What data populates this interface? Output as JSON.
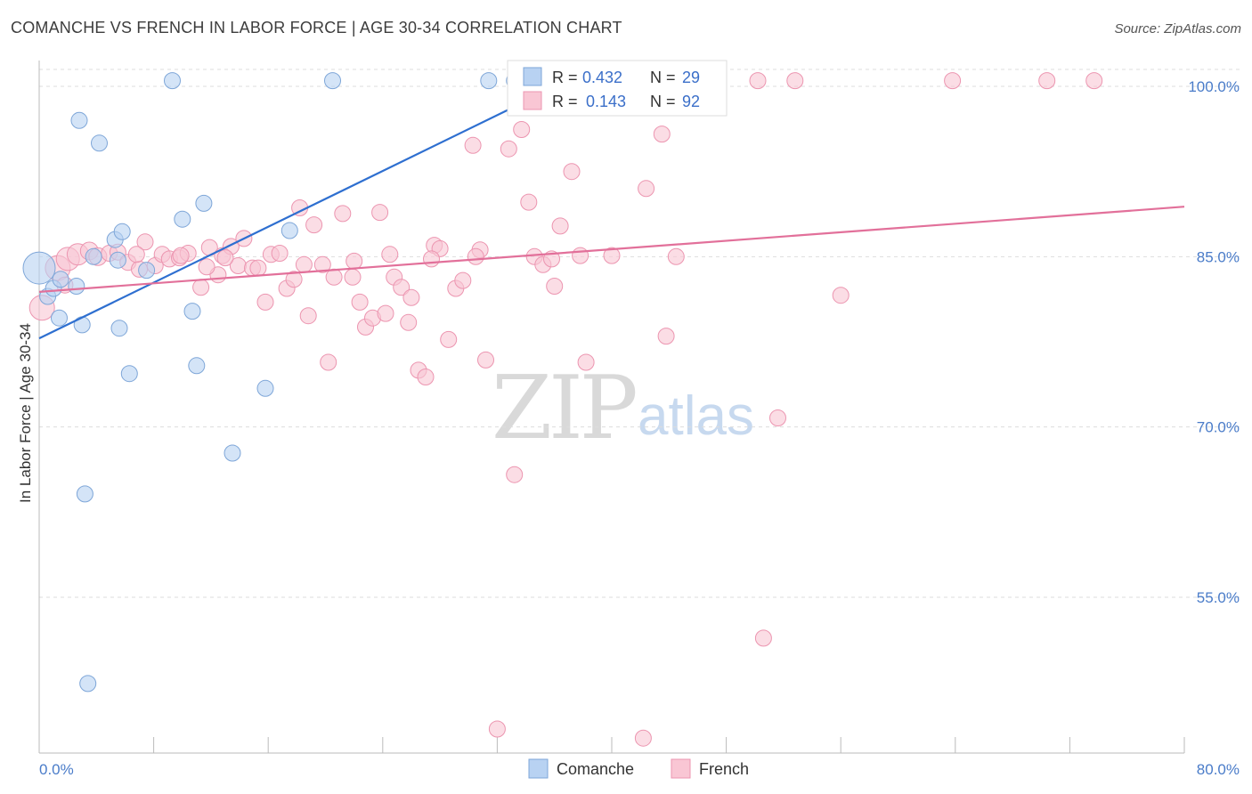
{
  "title": "COMANCHE VS FRENCH IN LABOR FORCE | AGE 30-34 CORRELATION CHART",
  "source": "Source: ZipAtlas.com",
  "watermark": {
    "zip": "ZIP",
    "atlas": "atlas"
  },
  "legend_stats": [
    {
      "r_label": "R =",
      "r_value": "0.432",
      "n_label": "N =",
      "n_value": "29"
    },
    {
      "r_label": "R =",
      "r_value": "0.143",
      "n_label": "N =",
      "n_value": "92"
    }
  ],
  "bottom_legend": [
    "Comanche",
    "French"
  ],
  "colors": {
    "comanche_fill": "#b8d2f2",
    "comanche_stroke": "#7ea6d8",
    "comanche_line": "#2e6fd0",
    "french_fill": "#f9c6d4",
    "french_stroke": "#ec95b0",
    "french_line": "#e2709a",
    "tick_label": "#4a7cc9",
    "grid": "#dddddd"
  },
  "chart_data": {
    "type": "scatter",
    "title": "COMANCHE VS FRENCH IN LABOR FORCE | AGE 30-34 CORRELATION CHART",
    "xlabel": "",
    "ylabel": "In Labor Force | Age 30-34",
    "xlim": [
      0,
      80
    ],
    "ylim": [
      41,
      102
    ],
    "x_tick_labels": [
      "0.0%",
      "80.0%"
    ],
    "y_ticks": [
      100,
      85,
      70,
      55
    ],
    "y_tick_labels": [
      "100.0%",
      "85.0%",
      "70.0%",
      "55.0%"
    ],
    "grid": "horizontal dashed",
    "legend_position": "top-center",
    "series": [
      {
        "name": "Comanche",
        "r": 0.432,
        "n": 29,
        "trend": {
          "x": [
            0,
            34.5
          ],
          "y": [
            77.8,
            99.0
          ]
        },
        "points": [
          [
            0.0,
            84.0,
            18
          ],
          [
            0.6,
            81.5,
            9
          ],
          [
            1.0,
            82.2,
            9
          ],
          [
            1.5,
            83.0,
            9
          ],
          [
            2.8,
            97.0,
            9
          ],
          [
            4.2,
            95.0,
            9
          ],
          [
            5.3,
            86.5,
            9
          ],
          [
            5.8,
            87.2,
            9
          ],
          [
            3.8,
            85.0,
            9
          ],
          [
            5.5,
            84.7,
            9
          ],
          [
            7.5,
            83.8,
            9
          ],
          [
            9.3,
            100.5,
            9
          ],
          [
            10.0,
            88.3,
            9
          ],
          [
            11.5,
            89.7,
            9
          ],
          [
            1.4,
            79.6,
            9
          ],
          [
            3.0,
            79.0,
            9
          ],
          [
            5.6,
            78.7,
            9
          ],
          [
            10.7,
            80.2,
            9
          ],
          [
            6.3,
            74.7,
            9
          ],
          [
            11.0,
            75.4,
            9
          ],
          [
            15.8,
            73.4,
            9
          ],
          [
            13.5,
            67.7,
            9
          ],
          [
            3.2,
            64.1,
            9
          ],
          [
            3.4,
            47.4,
            9
          ],
          [
            17.5,
            87.3,
            9
          ],
          [
            20.5,
            100.5,
            9
          ],
          [
            31.4,
            100.5,
            9
          ],
          [
            33.2,
            100.5,
            9
          ],
          [
            2.6,
            82.4,
            9
          ]
        ]
      },
      {
        "name": "French",
        "r": 0.143,
        "n": 92,
        "trend": {
          "x": [
            0,
            80
          ],
          "y": [
            81.9,
            89.4
          ]
        },
        "points": [
          [
            0.2,
            80.5,
            14
          ],
          [
            1.3,
            84.0,
            14
          ],
          [
            2.0,
            84.8,
            13
          ],
          [
            2.7,
            85.2,
            12
          ],
          [
            3.5,
            85.5,
            10
          ],
          [
            4.1,
            85.0,
            10
          ],
          [
            4.9,
            85.3,
            9
          ],
          [
            5.5,
            85.4,
            9
          ],
          [
            6.2,
            84.5,
            9
          ],
          [
            7.0,
            83.9,
            9
          ],
          [
            7.4,
            86.3,
            9
          ],
          [
            8.1,
            84.2,
            9
          ],
          [
            8.6,
            85.2,
            9
          ],
          [
            9.1,
            84.8,
            9
          ],
          [
            9.8,
            84.9,
            9
          ],
          [
            10.4,
            85.3,
            9
          ],
          [
            11.3,
            82.3,
            9
          ],
          [
            11.9,
            85.8,
            9
          ],
          [
            12.5,
            83.4,
            9
          ],
          [
            12.8,
            85.1,
            9
          ],
          [
            13.4,
            85.9,
            9
          ],
          [
            13.9,
            84.2,
            9
          ],
          [
            14.3,
            86.6,
            9
          ],
          [
            14.9,
            84.0,
            9
          ],
          [
            15.3,
            84.0,
            9
          ],
          [
            15.8,
            81.0,
            9
          ],
          [
            16.2,
            85.2,
            9
          ],
          [
            16.8,
            85.3,
            9
          ],
          [
            17.3,
            82.2,
            9
          ],
          [
            17.8,
            83.0,
            9
          ],
          [
            18.2,
            89.3,
            9
          ],
          [
            18.8,
            79.8,
            9
          ],
          [
            19.2,
            87.8,
            9
          ],
          [
            19.8,
            84.3,
            9
          ],
          [
            20.2,
            75.7,
            9
          ],
          [
            20.6,
            83.2,
            9
          ],
          [
            21.2,
            88.8,
            9
          ],
          [
            21.9,
            83.2,
            9
          ],
          [
            22.4,
            81.0,
            9
          ],
          [
            22.8,
            78.8,
            9
          ],
          [
            23.3,
            79.6,
            9
          ],
          [
            23.8,
            88.9,
            9
          ],
          [
            24.2,
            80.0,
            9
          ],
          [
            24.8,
            83.2,
            9
          ],
          [
            25.3,
            82.3,
            9
          ],
          [
            25.8,
            79.2,
            9
          ],
          [
            26.0,
            81.4,
            9
          ],
          [
            26.5,
            75.0,
            9
          ],
          [
            27.0,
            74.4,
            9
          ],
          [
            27.6,
            86.0,
            9
          ],
          [
            28.0,
            85.7,
            9
          ],
          [
            28.6,
            77.7,
            9
          ],
          [
            29.1,
            82.2,
            9
          ],
          [
            29.6,
            82.9,
            9
          ],
          [
            30.3,
            94.8,
            9
          ],
          [
            30.8,
            85.6,
            9
          ],
          [
            31.2,
            75.9,
            9
          ],
          [
            32.0,
            43.4,
            9
          ],
          [
            32.8,
            94.5,
            9
          ],
          [
            33.2,
            65.8,
            9
          ],
          [
            33.7,
            96.2,
            9
          ],
          [
            34.2,
            89.8,
            9
          ],
          [
            34.6,
            85.0,
            9
          ],
          [
            35.2,
            84.3,
            9
          ],
          [
            36.0,
            82.4,
            9
          ],
          [
            36.4,
            87.7,
            9
          ],
          [
            37.2,
            92.5,
            9
          ],
          [
            37.8,
            85.1,
            9
          ],
          [
            38.2,
            75.7,
            9
          ],
          [
            39.2,
            100.5,
            9
          ],
          [
            41.3,
            100.5,
            9
          ],
          [
            42.2,
            42.6,
            9
          ],
          [
            42.9,
            100.5,
            9
          ],
          [
            42.4,
            91.0,
            9
          ],
          [
            43.5,
            95.8,
            9
          ],
          [
            43.8,
            78.0,
            9
          ],
          [
            50.2,
            100.5,
            9
          ],
          [
            50.6,
            51.4,
            9
          ],
          [
            51.6,
            70.8,
            9
          ],
          [
            52.8,
            100.5,
            9
          ],
          [
            56.0,
            81.6,
            9
          ],
          [
            63.8,
            100.5,
            9
          ],
          [
            70.4,
            100.5,
            9
          ],
          [
            73.7,
            100.5,
            9
          ],
          [
            1.8,
            82.5,
            9
          ],
          [
            6.8,
            85.2,
            9
          ],
          [
            9.9,
            85.1,
            9
          ],
          [
            13.0,
            84.9,
            9
          ],
          [
            18.5,
            84.3,
            9
          ],
          [
            22.0,
            84.6,
            9
          ],
          [
            27.4,
            84.8,
            9
          ],
          [
            30.5,
            85.0,
            9
          ],
          [
            35.8,
            84.8,
            9
          ],
          [
            40.0,
            85.1,
            9
          ],
          [
            44.5,
            85.0,
            9
          ],
          [
            24.5,
            85.2,
            9
          ],
          [
            11.7,
            84.1,
            9
          ]
        ]
      }
    ]
  }
}
